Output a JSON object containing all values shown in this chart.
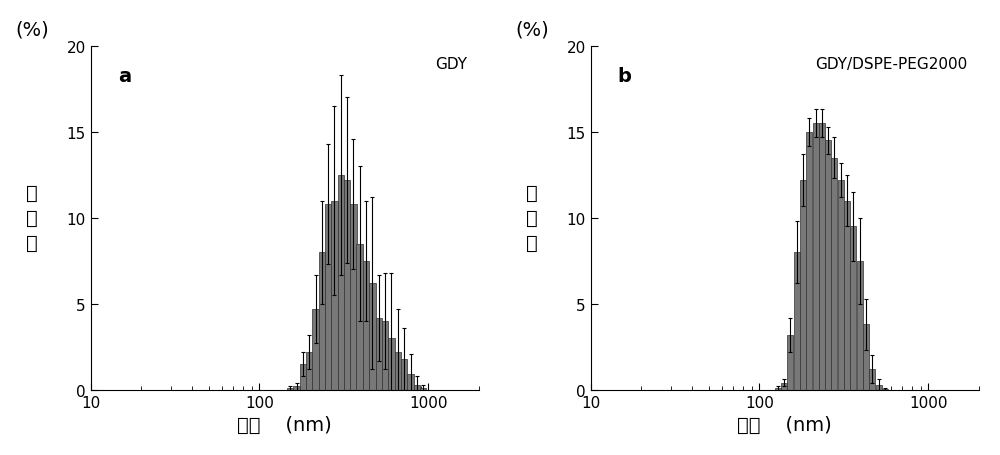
{
  "panel_a": {
    "label": "a",
    "title": "GDY",
    "centers": [
      152,
      166,
      181,
      197,
      215,
      234,
      255,
      278,
      303,
      330,
      360,
      392,
      428,
      467,
      509,
      555,
      605,
      660,
      720,
      785,
      855,
      932,
      1016
    ],
    "values": [
      0.1,
      0.2,
      1.5,
      2.2,
      4.7,
      8.0,
      10.8,
      11.0,
      12.5,
      12.2,
      10.8,
      8.5,
      7.5,
      6.2,
      4.2,
      4.0,
      3.0,
      2.2,
      1.8,
      0.9,
      0.3,
      0.1,
      0.0
    ],
    "errors": [
      0.1,
      0.2,
      0.7,
      1.0,
      2.0,
      3.0,
      3.5,
      5.5,
      5.8,
      4.8,
      3.8,
      4.5,
      3.5,
      5.0,
      2.5,
      2.8,
      3.8,
      2.5,
      1.8,
      1.2,
      0.5,
      0.2,
      0.0
    ]
  },
  "panel_b": {
    "label": "b",
    "title": "GDY/DSPE-PEG2000",
    "centers": [
      118,
      128,
      140,
      152,
      166,
      181,
      197,
      215,
      234,
      255,
      278,
      303,
      330,
      360,
      392,
      428,
      467,
      509,
      555,
      605,
      660,
      720,
      785,
      855,
      932
    ],
    "values": [
      0.0,
      0.1,
      0.4,
      3.2,
      8.0,
      12.2,
      15.0,
      15.5,
      15.5,
      14.5,
      13.5,
      12.2,
      11.0,
      9.5,
      7.5,
      3.8,
      1.2,
      0.3,
      0.05,
      0.0,
      0.0,
      0.0,
      0.0,
      0.0,
      0.0
    ],
    "errors": [
      0.0,
      0.1,
      0.2,
      1.0,
      1.8,
      1.5,
      0.8,
      0.8,
      0.8,
      0.8,
      1.2,
      1.0,
      1.5,
      2.0,
      2.5,
      1.5,
      0.8,
      0.3,
      0.05,
      0.0,
      0.0,
      0.0,
      0.0,
      0.0,
      0.0
    ]
  },
  "bar_color": "#787878",
  "bar_edge_color": "#303030",
  "ylim": [
    0,
    20
  ],
  "yticks": [
    0,
    5,
    10,
    15,
    20
  ],
  "xlim": [
    10,
    2000
  ],
  "xlabel_chi": "粒径",
  "xlabel_unit": "(nm)",
  "ylabel_pct": "(%)",
  "ylabel_chi": "百\n分\n数",
  "label_fontsize": 14,
  "title_fontsize": 11,
  "tick_fontsize": 11,
  "chi_fontsize": 14
}
